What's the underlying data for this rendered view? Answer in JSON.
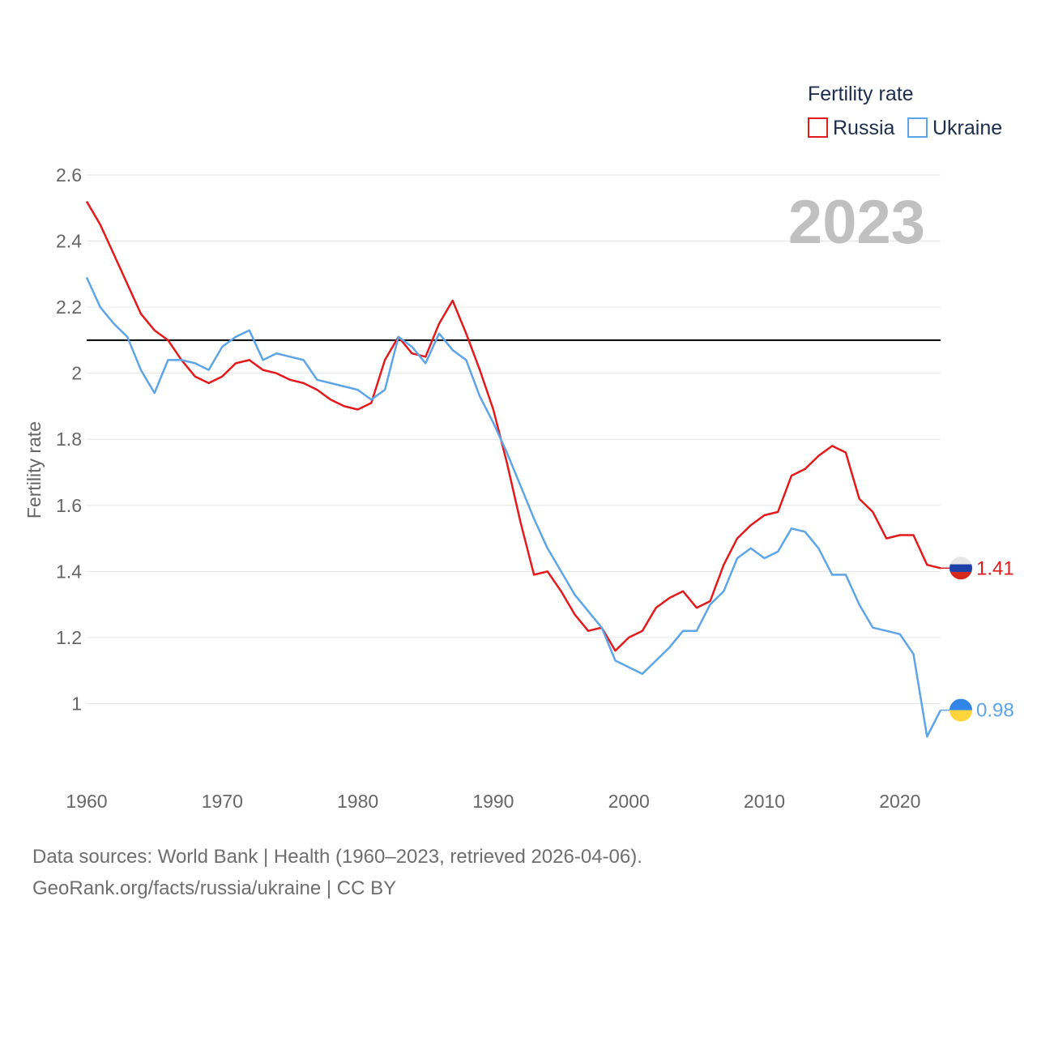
{
  "chart_data": {
    "type": "line",
    "title": "2023",
    "ylabel": "Fertility rate",
    "xlabel": "",
    "legend_title": "Fertility rate",
    "legend_position": "top-right",
    "xlim": [
      1960,
      2023
    ],
    "ylim": [
      0.8,
      2.6
    ],
    "x_ticks": [
      1960,
      1970,
      1980,
      1990,
      2000,
      2010,
      2020
    ],
    "x_tick_labels": [
      "1960",
      "1970",
      "1980",
      "1990",
      "2000",
      "2010",
      "2020"
    ],
    "y_ticks": [
      1,
      1.2,
      1.4,
      1.6,
      1.8,
      2,
      2.2,
      2.4,
      2.6
    ],
    "y_tick_labels": [
      "1",
      "1.2",
      "1.4",
      "1.6",
      "1.8",
      "2",
      "2.2",
      "2.4",
      "2.6"
    ],
    "reference_line": {
      "value": 2.1,
      "color": "#000000"
    },
    "grid": true,
    "x": [
      1960,
      1961,
      1962,
      1963,
      1964,
      1965,
      1966,
      1967,
      1968,
      1969,
      1970,
      1971,
      1972,
      1973,
      1974,
      1975,
      1976,
      1977,
      1978,
      1979,
      1980,
      1981,
      1982,
      1983,
      1984,
      1985,
      1986,
      1987,
      1988,
      1989,
      1990,
      1991,
      1992,
      1993,
      1994,
      1995,
      1996,
      1997,
      1998,
      1999,
      2000,
      2001,
      2002,
      2003,
      2004,
      2005,
      2006,
      2007,
      2008,
      2009,
      2010,
      2011,
      2012,
      2013,
      2014,
      2015,
      2016,
      2017,
      2018,
      2019,
      2020,
      2021,
      2022,
      2023
    ],
    "series": [
      {
        "name": "Russia",
        "color": "#e31a1c",
        "end_label": "1.41",
        "values": [
          2.52,
          2.45,
          2.36,
          2.27,
          2.18,
          2.13,
          2.1,
          2.04,
          1.99,
          1.97,
          1.99,
          2.03,
          2.04,
          2.01,
          2.0,
          1.98,
          1.97,
          1.95,
          1.92,
          1.9,
          1.89,
          1.91,
          2.04,
          2.11,
          2.06,
          2.05,
          2.15,
          2.22,
          2.12,
          2.01,
          1.89,
          1.73,
          1.55,
          1.39,
          1.4,
          1.34,
          1.27,
          1.22,
          1.23,
          1.16,
          1.2,
          1.22,
          1.29,
          1.32,
          1.34,
          1.29,
          1.31,
          1.42,
          1.5,
          1.54,
          1.57,
          1.58,
          1.69,
          1.71,
          1.75,
          1.78,
          1.76,
          1.62,
          1.58,
          1.5,
          1.51,
          1.51,
          1.42,
          1.41
        ]
      },
      {
        "name": "Ukraine",
        "color": "#5da5e8",
        "end_label": "0.98",
        "values": [
          2.29,
          2.2,
          2.15,
          2.11,
          2.01,
          1.94,
          2.04,
          2.04,
          2.03,
          2.01,
          2.08,
          2.11,
          2.13,
          2.04,
          2.06,
          2.05,
          2.04,
          1.98,
          1.97,
          1.96,
          1.95,
          1.92,
          1.95,
          2.11,
          2.08,
          2.03,
          2.12,
          2.07,
          2.04,
          1.93,
          1.85,
          1.76,
          1.66,
          1.56,
          1.47,
          1.4,
          1.33,
          1.28,
          1.23,
          1.13,
          1.11,
          1.09,
          1.13,
          1.17,
          1.22,
          1.22,
          1.3,
          1.34,
          1.44,
          1.47,
          1.44,
          1.46,
          1.53,
          1.52,
          1.47,
          1.39,
          1.39,
          1.3,
          1.23,
          1.22,
          1.21,
          1.15,
          0.9,
          0.98
        ]
      }
    ]
  },
  "footer": {
    "sources": "Data sources: World Bank | Health (1960–2023, retrieved 2026-04-06).",
    "link": "GeoRank.org/facts/russia/ukraine | CC BY"
  }
}
